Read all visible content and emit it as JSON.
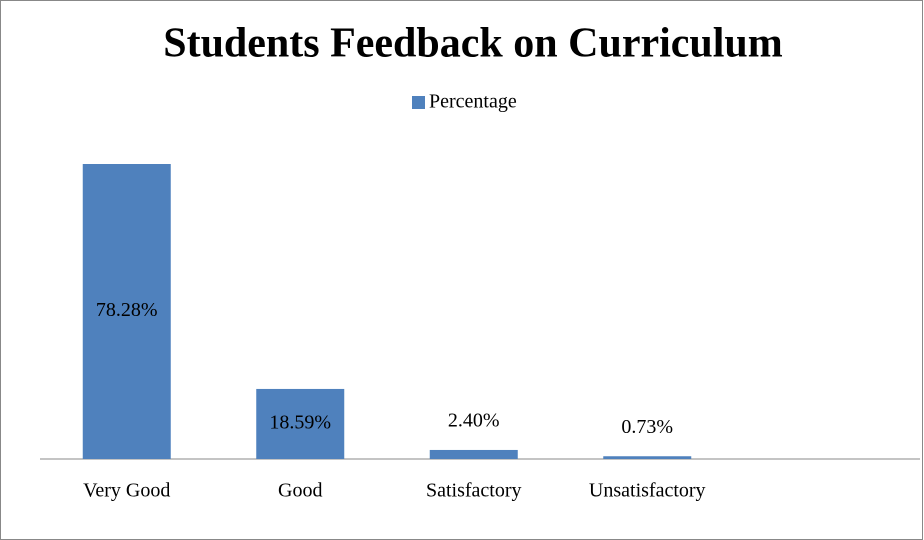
{
  "chart_data": {
    "type": "bar",
    "title": "Students Feedback on Curriculum",
    "categories": [
      "Very Good",
      "Good",
      "Satisfactory",
      "Unsatisfactory"
    ],
    "series": [
      {
        "name": "Percentage",
        "color": "#4f81bd",
        "values": [
          78.28,
          18.59,
          2.4,
          0.73
        ],
        "value_labels": [
          "78.28%",
          "18.59%",
          "2.40%",
          "0.73%"
        ]
      }
    ],
    "legend": "top"
  }
}
